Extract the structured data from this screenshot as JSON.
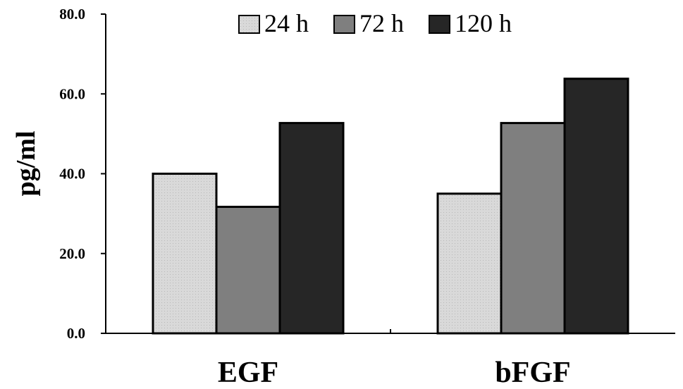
{
  "chart_data": {
    "type": "bar",
    "categories": [
      "EGF",
      "bFGF"
    ],
    "series": [
      {
        "name": "24 h",
        "values": [
          40.0,
          35.0
        ],
        "color": "#d9d9d9"
      },
      {
        "name": "72 h",
        "values": [
          31.7,
          52.7
        ],
        "color": "#7f7f7f"
      },
      {
        "name": "120 h",
        "values": [
          52.7,
          63.8
        ],
        "color": "#262626"
      }
    ],
    "ylabel": "pg/ml",
    "xlabel": "",
    "ylim": [
      0,
      80
    ],
    "yticks": [
      "0.0",
      "20.0",
      "40.0",
      "60.0",
      "80.0"
    ],
    "legend_position": "top",
    "grid": false
  }
}
